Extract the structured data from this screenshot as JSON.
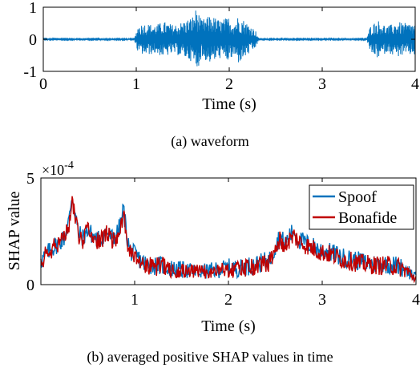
{
  "chart_data": [
    {
      "type": "line",
      "caption": "(a) waveform",
      "xlabel": "Time (s)",
      "ylabel": "",
      "xlim": [
        0,
        4
      ],
      "ylim": [
        -1,
        1
      ],
      "xticks": [
        0,
        1,
        2,
        3,
        4
      ],
      "yticks": [
        -1,
        0,
        1
      ],
      "grid": false,
      "series": [
        {
          "color": "#0072BD",
          "envelope": {
            "x": [
              0,
              0.98,
              1.02,
              1.1,
              1.2,
              1.3,
              1.4,
              1.5,
              1.6,
              1.65,
              1.7,
              1.8,
              1.9,
              2.0,
              2.05,
              2.1,
              2.2,
              2.28,
              2.32,
              3.48,
              3.52,
              3.6,
              3.7,
              3.8,
              3.9,
              4.0
            ],
            "amplitude": [
              0.02,
              0.02,
              0.45,
              0.5,
              0.45,
              0.55,
              0.45,
              0.55,
              0.7,
              1.0,
              0.6,
              0.75,
              0.6,
              0.7,
              0.55,
              0.75,
              0.5,
              0.3,
              0.02,
              0.02,
              0.45,
              0.6,
              0.4,
              0.55,
              0.5,
              0.5
            ]
          }
        }
      ]
    },
    {
      "type": "line",
      "caption": "(b) averaged positive SHAP values in time",
      "xlabel": "Time (s)",
      "ylabel": "SHAP value",
      "exponent_label": "×10",
      "exponent_power": "-4",
      "ylim": [
        0,
        5
      ],
      "xlim": [
        0,
        4
      ],
      "xticks": [
        1,
        2,
        3,
        4
      ],
      "yticks": [
        0,
        5
      ],
      "legend_position": "top-right",
      "grid": false,
      "series": [
        {
          "name": "Spoof",
          "color": "#0072BD",
          "x": [
            0,
            0.05,
            0.1,
            0.15,
            0.2,
            0.25,
            0.3,
            0.33,
            0.36,
            0.4,
            0.45,
            0.5,
            0.55,
            0.6,
            0.65,
            0.7,
            0.75,
            0.8,
            0.85,
            0.88,
            0.92,
            0.95,
            1.0,
            1.1,
            1.2,
            1.3,
            1.4,
            1.5,
            1.6,
            1.7,
            1.8,
            1.9,
            2.0,
            2.1,
            2.2,
            2.3,
            2.4,
            2.45,
            2.5,
            2.55,
            2.6,
            2.65,
            2.7,
            2.75,
            2.8,
            2.9,
            3.0,
            3.1,
            3.2,
            3.3,
            3.4,
            3.5,
            3.6,
            3.7,
            3.8,
            3.9,
            3.95,
            4.0
          ],
          "values": [
            1.1,
            1.4,
            1.6,
            1.8,
            2.0,
            2.2,
            3.0,
            4.2,
            3.5,
            2.4,
            2.2,
            2.6,
            2.3,
            2.1,
            2.2,
            2.5,
            2.2,
            2.3,
            2.8,
            3.6,
            2.2,
            1.6,
            1.4,
            1.0,
            0.9,
            0.9,
            0.75,
            0.7,
            0.65,
            0.6,
            0.65,
            0.7,
            0.8,
            0.75,
            0.85,
            0.95,
            1.1,
            1.2,
            1.8,
            2.3,
            1.9,
            2.3,
            2.5,
            2.1,
            2.0,
            1.8,
            1.6,
            1.5,
            1.3,
            1.2,
            1.1,
            1.0,
            0.95,
            0.95,
            0.9,
            0.7,
            0.5,
            0.3
          ]
        },
        {
          "name": "Bonafide",
          "color": "#C00000",
          "x": [
            0,
            0.05,
            0.1,
            0.15,
            0.2,
            0.25,
            0.3,
            0.33,
            0.36,
            0.4,
            0.45,
            0.5,
            0.55,
            0.6,
            0.65,
            0.7,
            0.75,
            0.8,
            0.85,
            0.88,
            0.92,
            0.95,
            1.0,
            1.1,
            1.2,
            1.3,
            1.4,
            1.5,
            1.6,
            1.7,
            1.8,
            1.9,
            2.0,
            2.1,
            2.2,
            2.3,
            2.4,
            2.45,
            2.5,
            2.55,
            2.6,
            2.65,
            2.7,
            2.75,
            2.8,
            2.9,
            3.0,
            3.1,
            3.2,
            3.3,
            3.4,
            3.5,
            3.6,
            3.7,
            3.8,
            3.9,
            3.95,
            4.0
          ],
          "values": [
            1.1,
            1.4,
            1.5,
            1.8,
            2.0,
            2.2,
            2.9,
            4.0,
            3.3,
            2.3,
            2.1,
            2.5,
            2.2,
            2.0,
            2.1,
            2.4,
            2.1,
            2.2,
            2.7,
            3.4,
            2.1,
            1.5,
            1.3,
            1.0,
            0.85,
            0.85,
            0.7,
            0.7,
            0.6,
            0.6,
            0.6,
            0.7,
            0.75,
            0.7,
            0.8,
            0.9,
            1.0,
            1.1,
            1.6,
            2.1,
            1.8,
            2.1,
            2.3,
            2.0,
            1.9,
            1.7,
            1.5,
            1.4,
            1.2,
            1.1,
            1.0,
            0.95,
            0.9,
            0.9,
            0.85,
            0.65,
            0.45,
            0.3
          ]
        }
      ]
    }
  ]
}
